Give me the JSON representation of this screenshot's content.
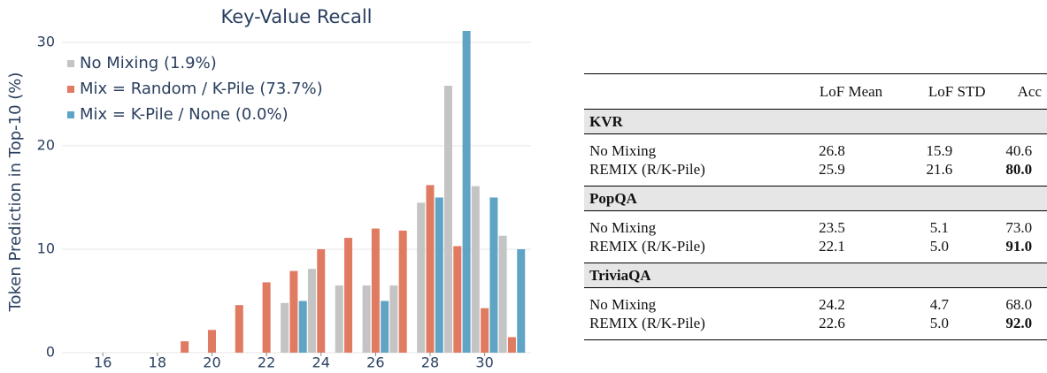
{
  "chart_data": {
    "type": "bar",
    "title": "Key-Value Recall",
    "ylabel": "Token Prediction in Top-10 (%)",
    "x": [
      15,
      16,
      17,
      18,
      19,
      20,
      21,
      22,
      23,
      24,
      25,
      26,
      27,
      28,
      29,
      30,
      31
    ],
    "series": [
      {
        "name": "No Mixing (1.9%)",
        "color": "#c4c4c4",
        "values": [
          0,
          0,
          0,
          0,
          0,
          0,
          0,
          0,
          4.8,
          8.1,
          6.5,
          6.5,
          6.5,
          14.5,
          25.8,
          16.1,
          11.3
        ]
      },
      {
        "name": "Mix = Random / K-Pile (73.7%)",
        "color": "#e07b62",
        "values": [
          0,
          0,
          0,
          0,
          1.1,
          2.2,
          4.6,
          6.8,
          7.9,
          10.0,
          11.1,
          12.0,
          11.8,
          16.2,
          10.3,
          4.3,
          1.5
        ]
      },
      {
        "name": "Mix = K-Pile / None (0.0%)",
        "color": "#5fa4c4",
        "values": [
          0,
          0,
          0,
          0,
          0,
          0,
          0,
          0,
          5.0,
          0,
          0,
          5.0,
          0,
          15.0,
          31.1,
          15.0,
          10.0
        ]
      }
    ],
    "xlim": [
      14.5,
      31.7
    ],
    "xticks": [
      16,
      18,
      20,
      22,
      24,
      26,
      28,
      30
    ],
    "ylim": [
      0,
      31.1
    ],
    "yticks": [
      0,
      10,
      20,
      30
    ],
    "grid": true,
    "legend": "upper left"
  },
  "table": {
    "columns": [
      "LoF Mean",
      "LoF STD",
      "Acc"
    ],
    "sections": [
      {
        "name": "KVR",
        "rows": [
          {
            "label": "No Mixing",
            "values": [
              "26.8",
              "15.9",
              "40.6"
            ]
          },
          {
            "label": "REMIX (R/K-Pile)",
            "values": [
              "25.9",
              "21.6",
              "80.0"
            ]
          }
        ]
      },
      {
        "name": "PopQA",
        "rows": [
          {
            "label": "No Mixing",
            "values": [
              "23.5",
              "5.1",
              "73.0"
            ]
          },
          {
            "label": "REMIX (R/K-Pile)",
            "values": [
              "22.1",
              "5.0",
              "91.0"
            ]
          }
        ]
      },
      {
        "name": "TriviaQA",
        "rows": [
          {
            "label": "No Mixing",
            "values": [
              "24.2",
              "4.7",
              "68.0"
            ]
          },
          {
            "label": "REMIX (R/K-Pile)",
            "values": [
              "22.6",
              "5.0",
              "92.0"
            ]
          }
        ]
      }
    ]
  }
}
